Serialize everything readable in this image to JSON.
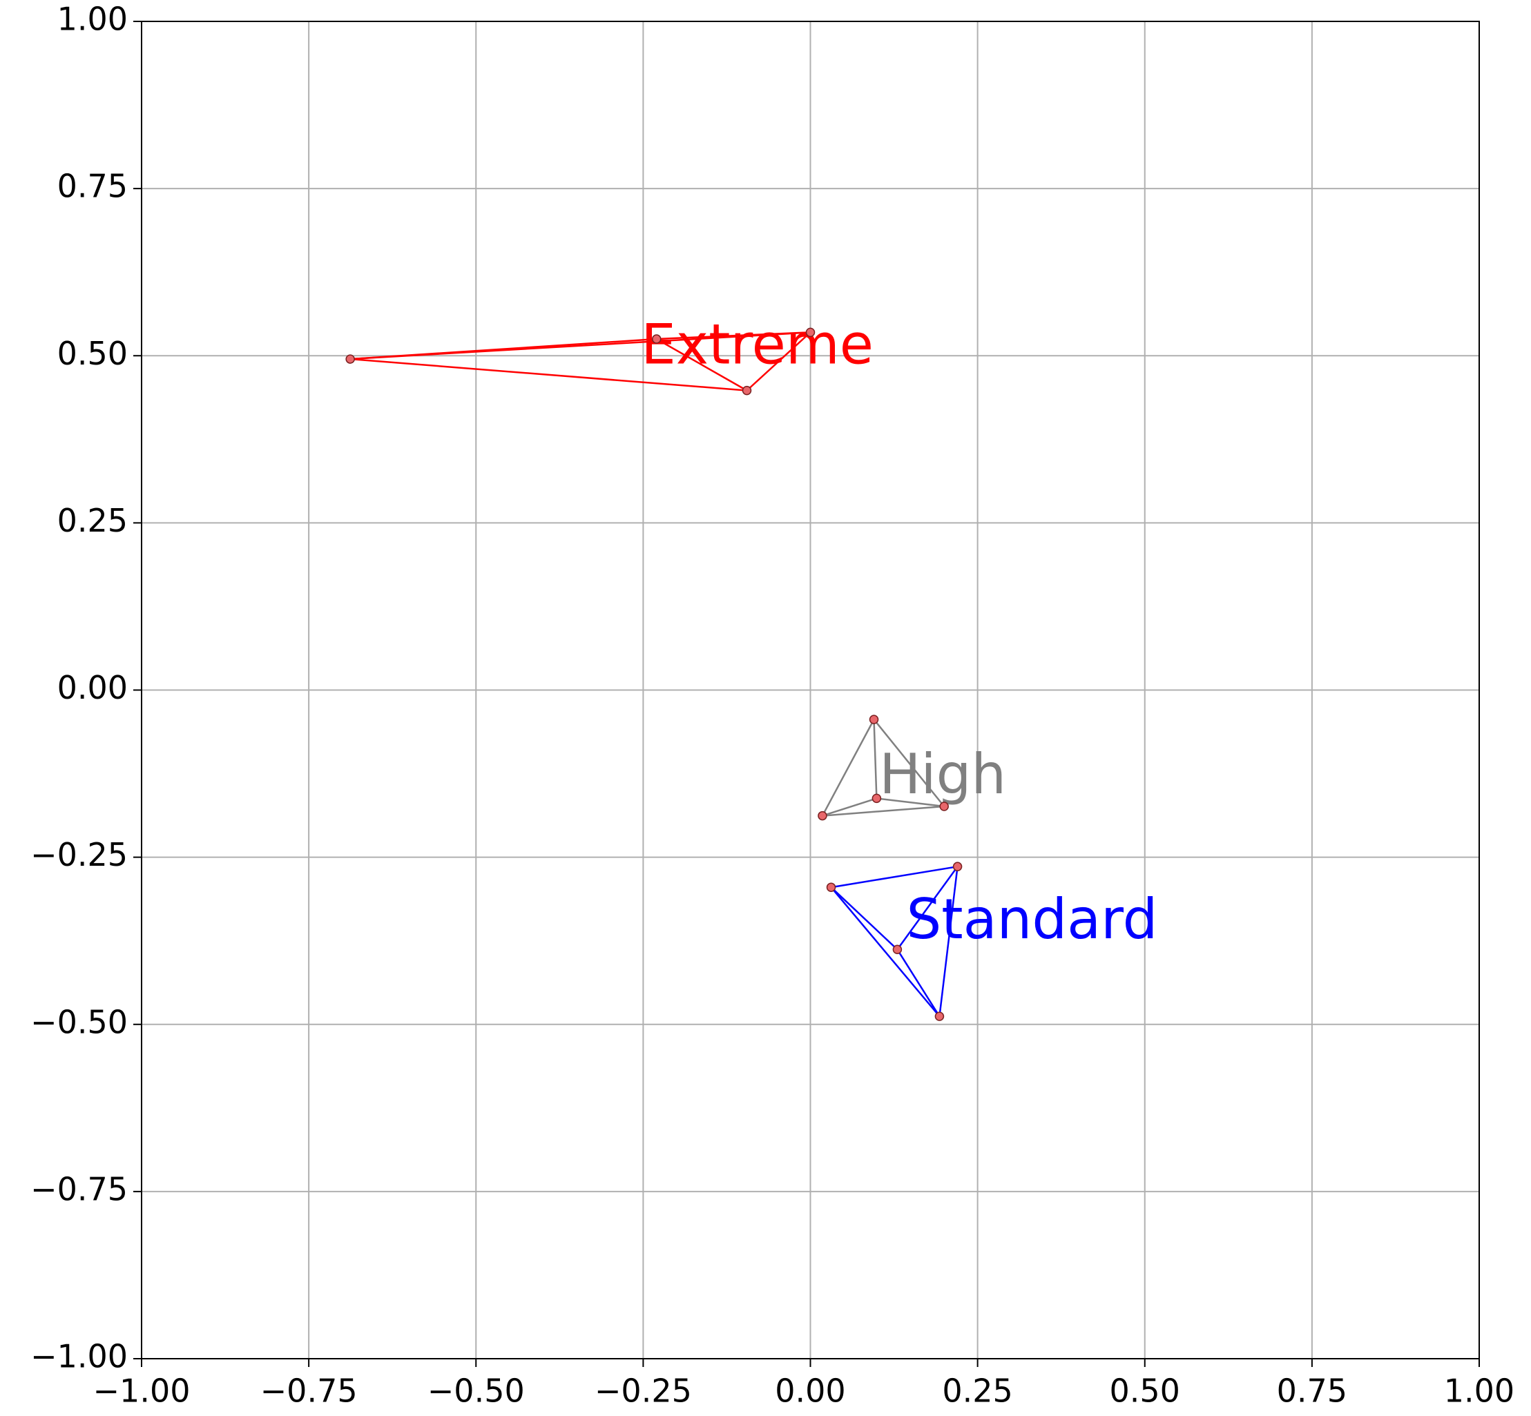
{
  "chart_data": {
    "type": "scatter",
    "marker_color": "#e8676b",
    "grid": true,
    "xlim": [
      -1,
      1
    ],
    "ylim": [
      -1,
      1
    ],
    "xticks": [
      {
        "value": -1,
        "label": "−1.00"
      },
      {
        "value": -0.75,
        "label": "−0.75"
      },
      {
        "value": -0.5,
        "label": "−0.50"
      },
      {
        "value": -0.25,
        "label": "−0.25"
      },
      {
        "value": 0,
        "label": "0.00"
      },
      {
        "value": 0.25,
        "label": "0.25"
      },
      {
        "value": 0.5,
        "label": "0.50"
      },
      {
        "value": 0.75,
        "label": "0.75"
      },
      {
        "value": 1,
        "label": "1.00"
      }
    ],
    "yticks": [
      {
        "value": -1,
        "label": "−1.00"
      },
      {
        "value": -0.75,
        "label": "−0.75"
      },
      {
        "value": -0.5,
        "label": "−0.50"
      },
      {
        "value": -0.25,
        "label": "−0.25"
      },
      {
        "value": 0,
        "label": "0.00"
      },
      {
        "value": 0.25,
        "label": "0.25"
      },
      {
        "value": 0.5,
        "label": "0.50"
      },
      {
        "value": 0.75,
        "label": "0.75"
      },
      {
        "value": 1,
        "label": "1.00"
      }
    ],
    "series": [
      {
        "name": "Extreme",
        "color": "#ff0000",
        "x": [
          -0.688,
          -0.095,
          -0.23,
          0.0
        ],
        "values": [
          0.495,
          0.448,
          0.525,
          0.535
        ]
      },
      {
        "name": "High",
        "color": "#808080",
        "x": [
          0.095,
          0.018,
          0.099,
          0.2
        ],
        "values": [
          -0.044,
          -0.188,
          -0.162,
          -0.174
        ]
      },
      {
        "name": "Standard",
        "color": "#0000ff",
        "x": [
          0.031,
          0.22,
          0.13,
          0.193
        ],
        "values": [
          -0.295,
          -0.264,
          -0.388,
          -0.488
        ]
      }
    ]
  }
}
